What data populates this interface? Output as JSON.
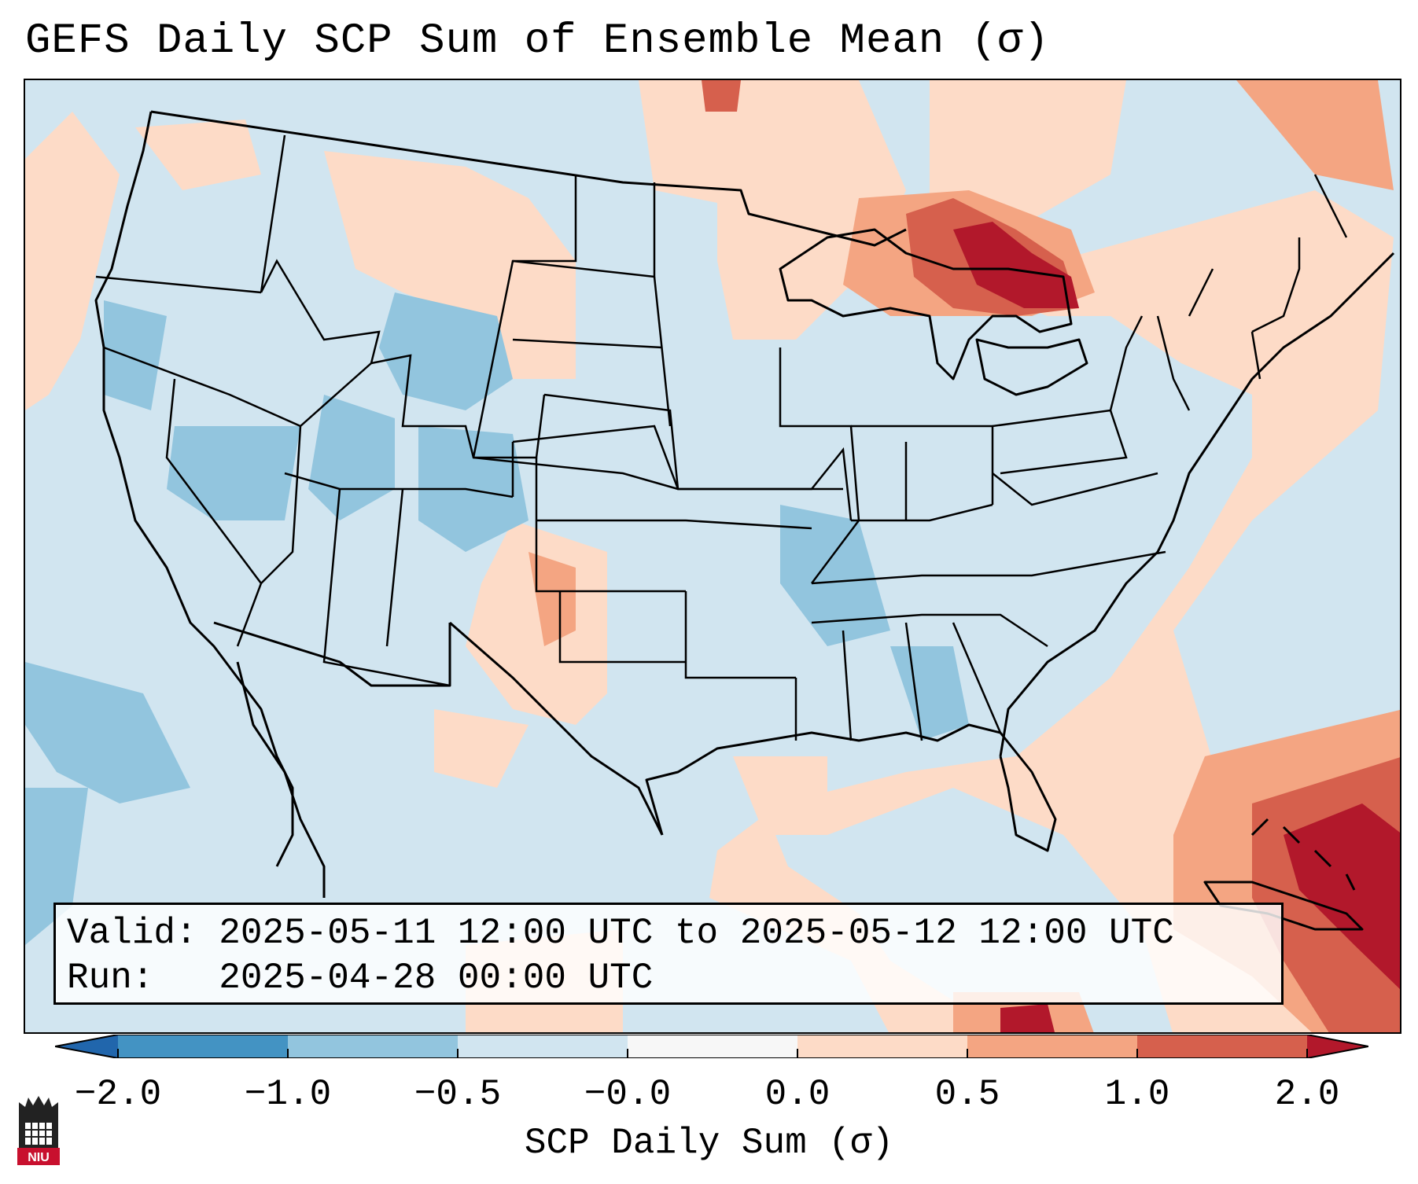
{
  "title": "GEFS Daily SCP Sum of Ensemble Mean (σ)",
  "infobox": {
    "valid_label": "Valid:",
    "valid_value": "2025-05-11 12:00 UTC to 2025-05-12 12:00 UTC",
    "run_label": "Run:",
    "run_value": "2025-04-28 00:00 UTC"
  },
  "colorbar": {
    "label": "SCP Daily Sum (σ)",
    "ticks": [
      "−2.0",
      "−1.0",
      "−0.5",
      "−0.0",
      "0.0",
      "0.5",
      "1.0",
      "2.0"
    ],
    "colors": [
      "#2166ac",
      "#4393c3",
      "#92c5de",
      "#d1e5f0",
      "#f7f7f7",
      "#fddbc7",
      "#f4a582",
      "#d6604d",
      "#b2182b"
    ]
  },
  "logo": {
    "text": "NIU",
    "icon": "niu-logo-icon"
  }
}
